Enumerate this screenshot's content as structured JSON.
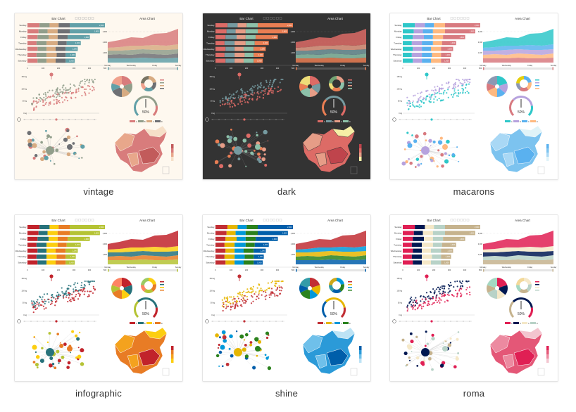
{
  "themes": [
    {
      "name": "vintage",
      "bg": "#fef8ef",
      "text": "#333333",
      "axis": "#bbbbbb",
      "colors": [
        "#d87c7c",
        "#919e8b",
        "#d7ab82",
        "#6e7074",
        "#61a0a8",
        "#efa18d",
        "#787464",
        "#cc7e63"
      ],
      "map": [
        "#f6e0c8",
        "#e8a78b",
        "#d87c7c",
        "#c25b5b"
      ]
    },
    {
      "name": "dark",
      "bg": "#333333",
      "text": "#eeeeee",
      "axis": "#777777",
      "colors": [
        "#dd6b66",
        "#759aa0",
        "#e69d87",
        "#8dc1a9",
        "#ea7e53",
        "#eedd78",
        "#73a373",
        "#73b9bc"
      ],
      "map": [
        "#f6efa6",
        "#e69d87",
        "#dd6b66",
        "#bf444c"
      ]
    },
    {
      "name": "macarons",
      "bg": "#ffffff",
      "text": "#333333",
      "axis": "#cccccc",
      "colors": [
        "#2ec7c9",
        "#b6a2de",
        "#5ab1ef",
        "#ffb980",
        "#d87a80",
        "#8d98b3",
        "#e5cf0d",
        "#97b552"
      ],
      "map": [
        "#e0f3f8",
        "#a9d8f5",
        "#7cc3ef",
        "#5ab1ef"
      ]
    },
    {
      "name": "infographic",
      "bg": "#ffffff",
      "text": "#333333",
      "axis": "#cccccc",
      "colors": [
        "#c1232b",
        "#27727b",
        "#fcce10",
        "#e87c25",
        "#b5c334",
        "#fe8463",
        "#9bca63",
        "#fad860"
      ],
      "map": [
        "#fcce10",
        "#f4a21e",
        "#e87c25",
        "#c1232b"
      ]
    },
    {
      "name": "shine",
      "bg": "#ffffff",
      "text": "#333333",
      "axis": "#cccccc",
      "colors": [
        "#c12e34",
        "#e6b600",
        "#0098d9",
        "#2b821d",
        "#005eaa",
        "#339ca8",
        "#cda819",
        "#32a487"
      ],
      "map": [
        "#bde3f5",
        "#6fc0ea",
        "#2b9ad8",
        "#005eaa"
      ]
    },
    {
      "name": "roma",
      "bg": "#ffffff",
      "text": "#333333",
      "axis": "#cccccc",
      "colors": [
        "#e01f54",
        "#001852",
        "#f5e8c8",
        "#b8d2c7",
        "#c6b38e",
        "#a4d8c2",
        "#f3d999",
        "#d3758f"
      ],
      "map": [
        "#f3c5cf",
        "#ec8aa0",
        "#e45777",
        "#e01f54"
      ]
    }
  ],
  "preview": {
    "bar_title": "Bar Chart",
    "area_title": "Area Chart",
    "bar_categories": [
      "Sunday",
      "Monday",
      "Friday",
      "Tuesday",
      "Wednesday",
      "Thursday",
      "Saturday"
    ],
    "bar_values": [
      [
        12,
        10,
        9,
        11,
        35
      ],
      [
        11,
        9,
        10,
        12,
        30
      ],
      [
        10,
        11,
        9,
        10,
        22
      ],
      [
        9,
        10,
        11,
        9,
        14
      ],
      [
        10,
        9,
        9,
        10,
        12
      ],
      [
        9,
        10,
        10,
        9,
        10
      ],
      [
        10,
        9,
        9,
        10,
        9
      ]
    ],
    "bar_value_labels": [
      "2,000",
      "1,800",
      "1,600",
      "1,400",
      "1,200",
      "1,100",
      "1,000"
    ],
    "bar_axis_ticks": [
      "0",
      "100",
      "200",
      "300",
      "400",
      "500"
    ],
    "area_axis_ticks": [
      "Monday",
      "Wednesday",
      "Friday",
      "Sunday"
    ],
    "area_y_ticks": [
      "3,000",
      "2,000",
      "1,000"
    ],
    "scatter_y_ticks": [
      "150 kg",
      "100 kg",
      "50 kg",
      "0 kg"
    ],
    "gauge_value": "50%",
    "legend_items": [
      "A",
      "B",
      "C",
      "D"
    ],
    "toolbox_icons": [
      "restore-icon",
      "save-icon",
      "zoom-icon",
      "data-view-icon",
      "line-icon",
      "bar-icon"
    ]
  }
}
